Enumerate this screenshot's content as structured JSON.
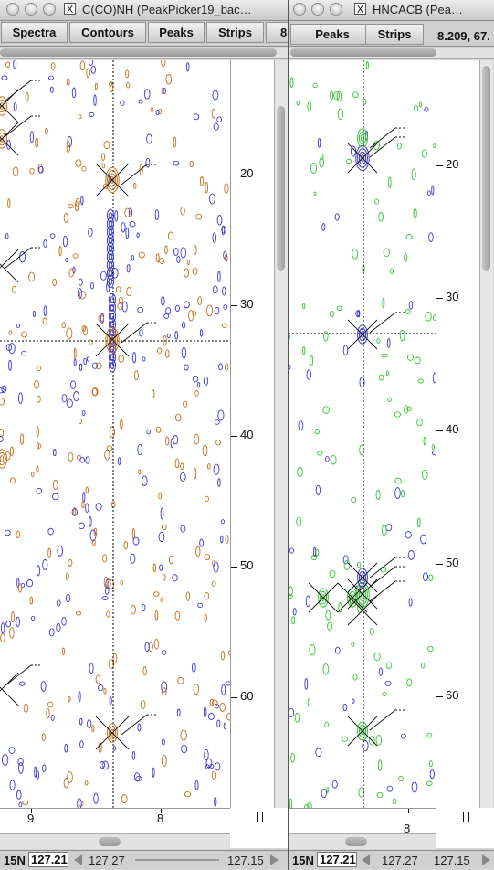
{
  "colors": {
    "orange": "#c7701a",
    "blue": "#3b3bd8",
    "green": "#36c336",
    "cross": "#111111"
  },
  "left_window": {
    "title": "C(CO)NH (PeakPicker19_bac…",
    "toolbar": [
      "Spectra",
      "Contours",
      "Peaks",
      "Strips",
      "8."
    ],
    "y_ticks": [
      "20",
      "30",
      "40",
      "50",
      "60"
    ],
    "x_ticks": [
      "9",
      "8"
    ],
    "status": {
      "axis_label": "15N",
      "field_value": "127.21",
      "left_value": "127.27",
      "right_value": "127.15"
    }
  },
  "right_window": {
    "title": "HNCACB (Pea…",
    "toolbar": [
      "Peaks",
      "Strips"
    ],
    "coordinate_readout": "8.209,  67.",
    "y_ticks": [
      "20",
      "30",
      "40",
      "50",
      "60"
    ],
    "x_ticks": [
      "8"
    ],
    "status": {
      "axis_label": "15N",
      "field_value": "127.21",
      "left_value": "127.27",
      "right_value": "127.15"
    }
  },
  "icons": {
    "window_button": "x-window-icon"
  }
}
